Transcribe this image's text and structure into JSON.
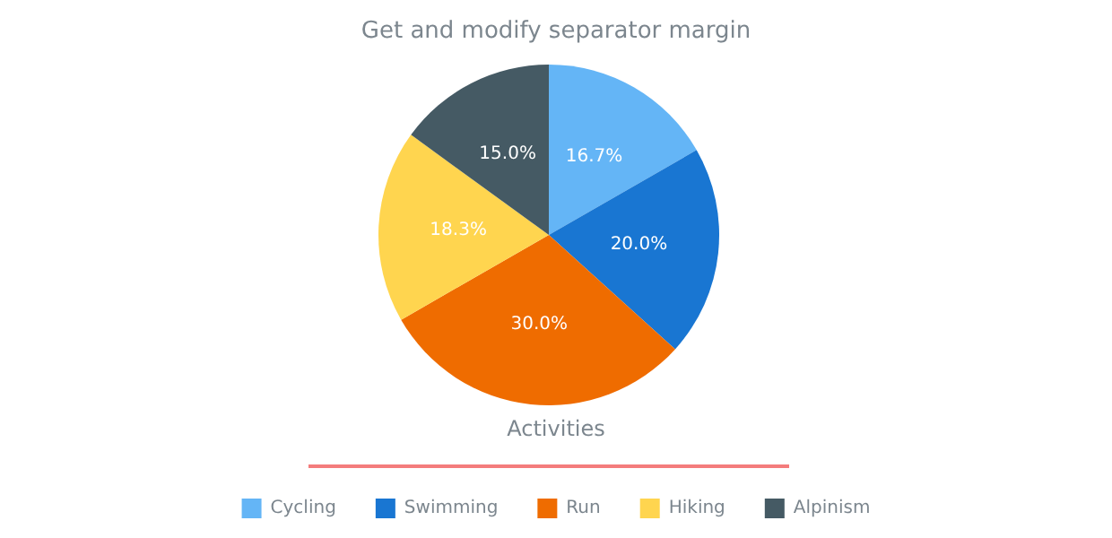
{
  "chart_data": {
    "type": "pie",
    "title": "Get and modify separator margin",
    "legend_title": "Activities",
    "categories": [
      "Cycling",
      "Swimming",
      "Run",
      "Hiking",
      "Alpinism"
    ],
    "values": [
      16.7,
      20.0,
      30.0,
      18.3,
      15.0
    ],
    "value_labels": [
      "16.7%",
      "20.0%",
      "30.0%",
      "18.3%",
      "15.0%"
    ],
    "colors": [
      "#64b5f6",
      "#1976d2",
      "#ef6c00",
      "#ffd54f",
      "#455a64"
    ],
    "legend": "bottom"
  }
}
